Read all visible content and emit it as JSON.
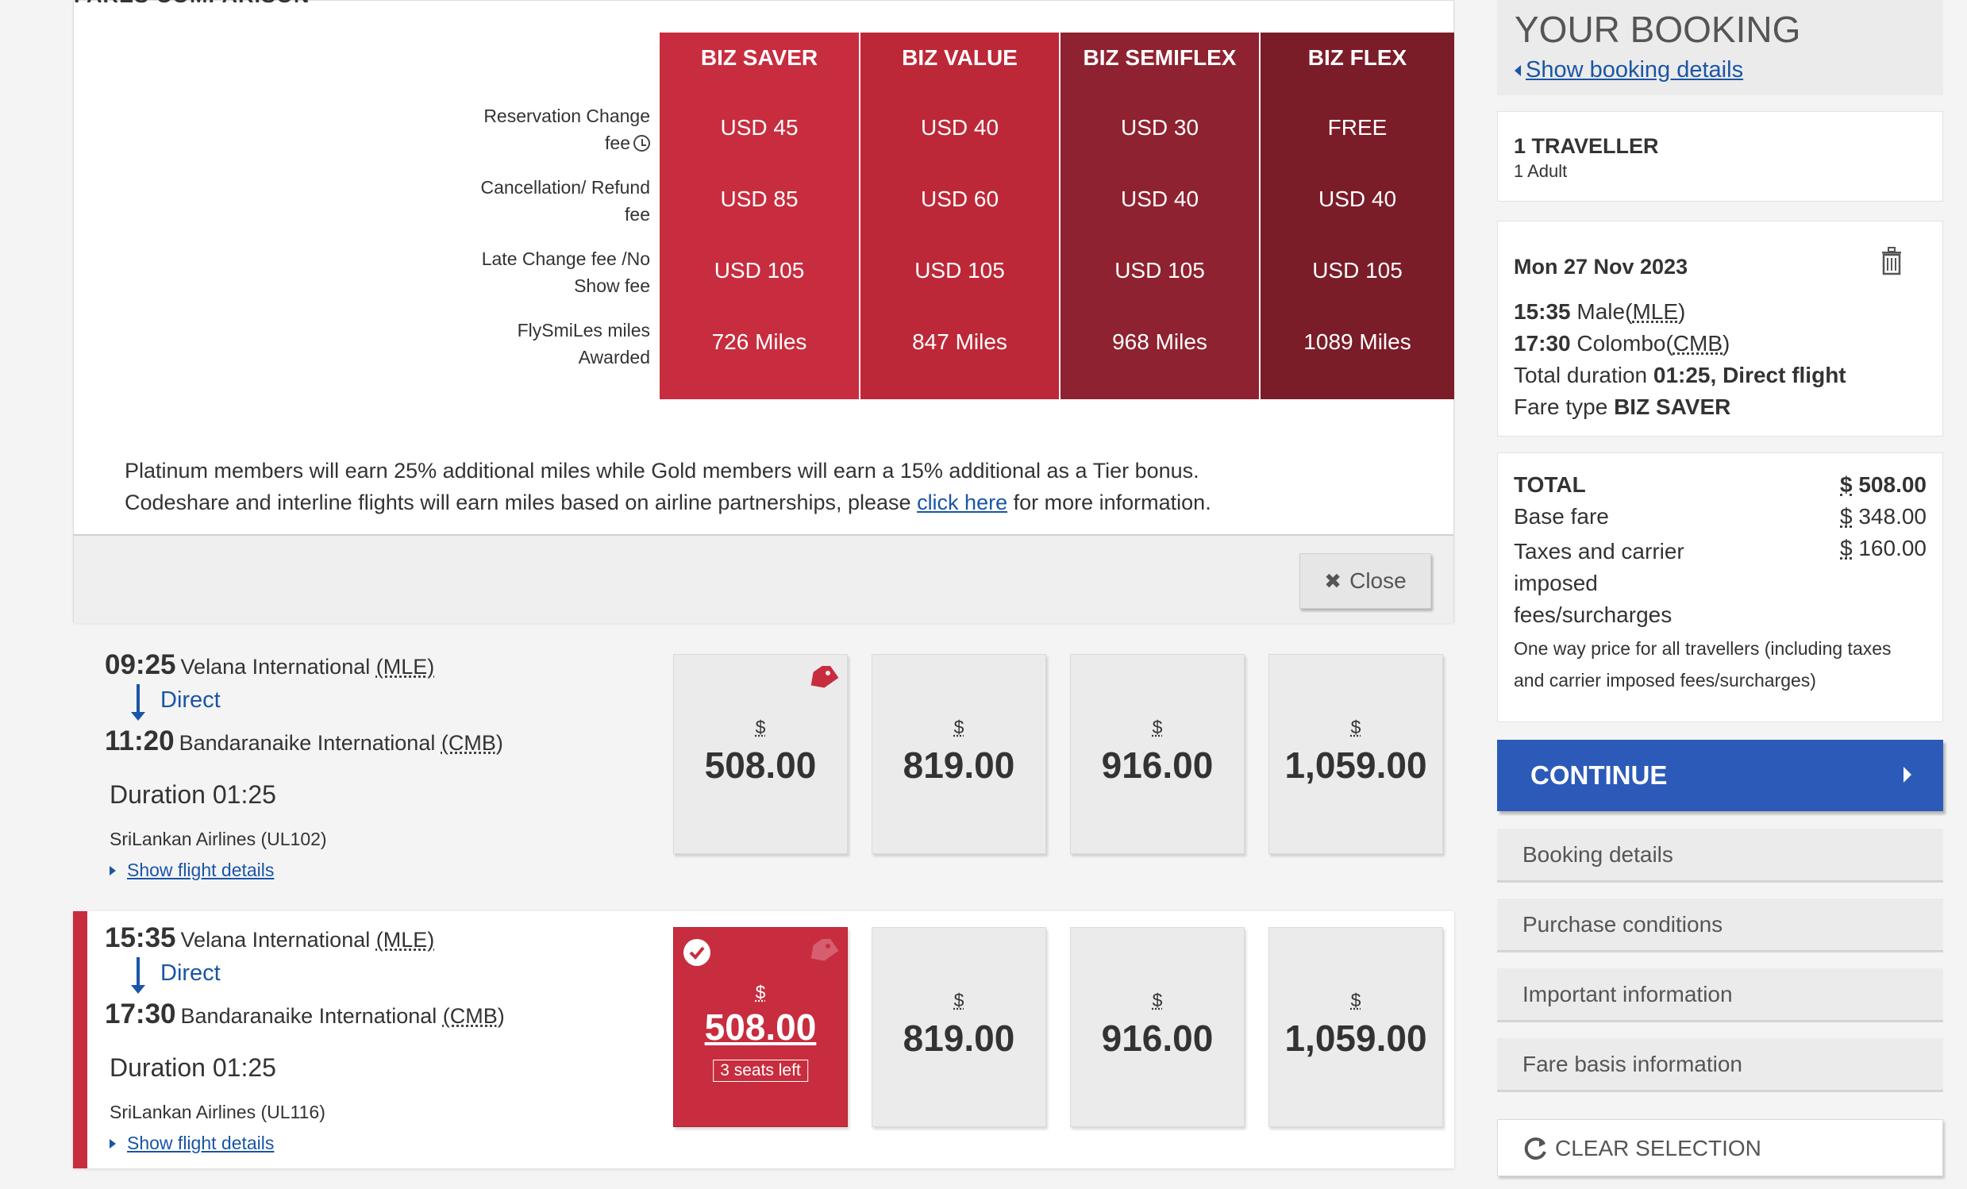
{
  "comparison": {
    "title": "FARES COMPARISON",
    "columns": [
      "BIZ SAVER",
      "BIZ VALUE",
      "BIZ SEMIFLEX",
      "BIZ FLEX"
    ],
    "column_colors": [
      "#c72d3e",
      "#bd2838",
      "#8f2230",
      "#7b1c29"
    ],
    "row_labels": [
      {
        "line1": "Reservation Change",
        "line2": "fee"
      },
      {
        "line1": "Cancellation/ Refund",
        "line2": "fee"
      },
      {
        "line1": "Late Change fee /No",
        "line2": "Show fee"
      },
      {
        "line1": "FlySmiLes miles",
        "line2": "Awarded"
      }
    ],
    "cells": [
      [
        "USD 45",
        "USD 40",
        "USD 30",
        "FREE"
      ],
      [
        "USD 85",
        "USD 60",
        "USD 40",
        "USD 40"
      ],
      [
        "USD 105",
        "USD 105",
        "USD 105",
        "USD 105"
      ],
      [
        "726 Miles",
        "847 Miles",
        "968 Miles",
        "1089 Miles"
      ]
    ],
    "note_line1": "Platinum members will earn 25% additional miles while Gold members will earn a 15% additional as a Tier bonus.",
    "note_line2_before": "Codeshare and interline flights will earn miles based on airline partnerships, please ",
    "note_link": "click here",
    "note_line2_after": " for more information.",
    "close_label": "Close"
  },
  "flights": [
    {
      "dep_time": "09:25",
      "dep_airport": "Velana International",
      "dep_code": "(MLE)",
      "direct": "Direct",
      "arr_time": "11:20",
      "arr_airport": "Bandaranaike International",
      "arr_code": "(CMB)",
      "duration": "Duration 01:25",
      "airline": "SriLankan Airlines (UL102)",
      "details_link": "Show flight details",
      "currency": "$",
      "prices": [
        "508.00",
        "819.00",
        "916.00",
        "1,059.00"
      ],
      "selected": false
    },
    {
      "dep_time": "15:35",
      "dep_airport": "Velana International",
      "dep_code": "(MLE)",
      "direct": "Direct",
      "arr_time": "17:30",
      "arr_airport": "Bandaranaike International",
      "arr_code": "(CMB)",
      "duration": "Duration 01:25",
      "airline": "SriLankan Airlines (UL116)",
      "details_link": "Show flight details",
      "currency": "$",
      "prices": [
        "508.00",
        "819.00",
        "916.00",
        "1,059.00"
      ],
      "seats_left": "3 seats left",
      "selected": true
    }
  ],
  "booking": {
    "title": "YOUR BOOKING",
    "show_details": "Show booking details",
    "travellers": "1 TRAVELLER",
    "traveller_type": "1 Adult",
    "date": "Mon 27 Nov 2023",
    "dep_time": "15:35",
    "dep_city": "Male",
    "dep_code": "MLE",
    "arr_time": "17:30",
    "arr_city": "Colombo",
    "arr_code": "CMB",
    "duration_label": "Total duration",
    "duration_value": "01:25, Direct flight",
    "fare_type_label": "Fare type",
    "fare_type_value": "BIZ SAVER",
    "total_label": "TOTAL",
    "total_currency": "$",
    "total_value": "508.00",
    "base_label": "Base fare",
    "base_value": "348.00",
    "taxes_label_1": "Taxes and carrier",
    "taxes_label_2": "imposed",
    "taxes_label_3": "fees/surcharges",
    "taxes_value": "160.00",
    "price_note_1": "One way price for all travellers (including taxes",
    "price_note_2": "and carrier imposed fees/surcharges)",
    "continue_label": "CONTINUE",
    "accordion": [
      "Booking details",
      "Purchase conditions",
      "Important information",
      "Fare basis information"
    ],
    "clear_label": "CLEAR SELECTION"
  },
  "colors": {
    "brand_red": "#c72d3e",
    "link_blue": "#1a55a6",
    "continue_blue": "#2c5ab9"
  }
}
